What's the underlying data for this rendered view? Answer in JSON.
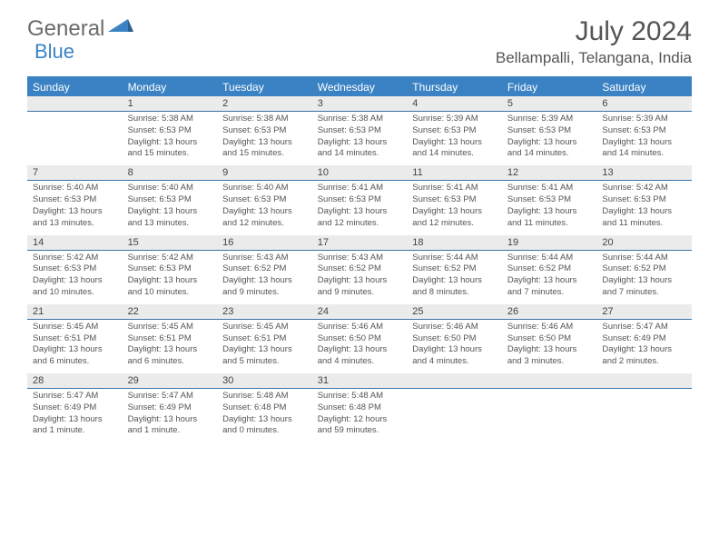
{
  "logo": {
    "text1": "General",
    "text2": "Blue"
  },
  "title": "July 2024",
  "location": "Bellampalli, Telangana, India",
  "colors": {
    "header_bg": "#3b82c4",
    "daynum_bg": "#ebebeb",
    "border": "#3b74a8",
    "text": "#555555",
    "logo_gray": "#6b6b6b",
    "logo_blue": "#3b82c4"
  },
  "day_names": [
    "Sunday",
    "Monday",
    "Tuesday",
    "Wednesday",
    "Thursday",
    "Friday",
    "Saturday"
  ],
  "weeks": [
    {
      "nums": [
        "",
        "1",
        "2",
        "3",
        "4",
        "5",
        "6"
      ],
      "cells": [
        null,
        {
          "sunrise": "5:38 AM",
          "sunset": "6:53 PM",
          "daylight": "13 hours and 15 minutes."
        },
        {
          "sunrise": "5:38 AM",
          "sunset": "6:53 PM",
          "daylight": "13 hours and 15 minutes."
        },
        {
          "sunrise": "5:38 AM",
          "sunset": "6:53 PM",
          "daylight": "13 hours and 14 minutes."
        },
        {
          "sunrise": "5:39 AM",
          "sunset": "6:53 PM",
          "daylight": "13 hours and 14 minutes."
        },
        {
          "sunrise": "5:39 AM",
          "sunset": "6:53 PM",
          "daylight": "13 hours and 14 minutes."
        },
        {
          "sunrise": "5:39 AM",
          "sunset": "6:53 PM",
          "daylight": "13 hours and 14 minutes."
        }
      ]
    },
    {
      "nums": [
        "7",
        "8",
        "9",
        "10",
        "11",
        "12",
        "13"
      ],
      "cells": [
        {
          "sunrise": "5:40 AM",
          "sunset": "6:53 PM",
          "daylight": "13 hours and 13 minutes."
        },
        {
          "sunrise": "5:40 AM",
          "sunset": "6:53 PM",
          "daylight": "13 hours and 13 minutes."
        },
        {
          "sunrise": "5:40 AM",
          "sunset": "6:53 PM",
          "daylight": "13 hours and 12 minutes."
        },
        {
          "sunrise": "5:41 AM",
          "sunset": "6:53 PM",
          "daylight": "13 hours and 12 minutes."
        },
        {
          "sunrise": "5:41 AM",
          "sunset": "6:53 PM",
          "daylight": "13 hours and 12 minutes."
        },
        {
          "sunrise": "5:41 AM",
          "sunset": "6:53 PM",
          "daylight": "13 hours and 11 minutes."
        },
        {
          "sunrise": "5:42 AM",
          "sunset": "6:53 PM",
          "daylight": "13 hours and 11 minutes."
        }
      ]
    },
    {
      "nums": [
        "14",
        "15",
        "16",
        "17",
        "18",
        "19",
        "20"
      ],
      "cells": [
        {
          "sunrise": "5:42 AM",
          "sunset": "6:53 PM",
          "daylight": "13 hours and 10 minutes."
        },
        {
          "sunrise": "5:42 AM",
          "sunset": "6:53 PM",
          "daylight": "13 hours and 10 minutes."
        },
        {
          "sunrise": "5:43 AM",
          "sunset": "6:52 PM",
          "daylight": "13 hours and 9 minutes."
        },
        {
          "sunrise": "5:43 AM",
          "sunset": "6:52 PM",
          "daylight": "13 hours and 9 minutes."
        },
        {
          "sunrise": "5:44 AM",
          "sunset": "6:52 PM",
          "daylight": "13 hours and 8 minutes."
        },
        {
          "sunrise": "5:44 AM",
          "sunset": "6:52 PM",
          "daylight": "13 hours and 7 minutes."
        },
        {
          "sunrise": "5:44 AM",
          "sunset": "6:52 PM",
          "daylight": "13 hours and 7 minutes."
        }
      ]
    },
    {
      "nums": [
        "21",
        "22",
        "23",
        "24",
        "25",
        "26",
        "27"
      ],
      "cells": [
        {
          "sunrise": "5:45 AM",
          "sunset": "6:51 PM",
          "daylight": "13 hours and 6 minutes."
        },
        {
          "sunrise": "5:45 AM",
          "sunset": "6:51 PM",
          "daylight": "13 hours and 6 minutes."
        },
        {
          "sunrise": "5:45 AM",
          "sunset": "6:51 PM",
          "daylight": "13 hours and 5 minutes."
        },
        {
          "sunrise": "5:46 AM",
          "sunset": "6:50 PM",
          "daylight": "13 hours and 4 minutes."
        },
        {
          "sunrise": "5:46 AM",
          "sunset": "6:50 PM",
          "daylight": "13 hours and 4 minutes."
        },
        {
          "sunrise": "5:46 AM",
          "sunset": "6:50 PM",
          "daylight": "13 hours and 3 minutes."
        },
        {
          "sunrise": "5:47 AM",
          "sunset": "6:49 PM",
          "daylight": "13 hours and 2 minutes."
        }
      ]
    },
    {
      "nums": [
        "28",
        "29",
        "30",
        "31",
        "",
        "",
        ""
      ],
      "cells": [
        {
          "sunrise": "5:47 AM",
          "sunset": "6:49 PM",
          "daylight": "13 hours and 1 minute."
        },
        {
          "sunrise": "5:47 AM",
          "sunset": "6:49 PM",
          "daylight": "13 hours and 1 minute."
        },
        {
          "sunrise": "5:48 AM",
          "sunset": "6:48 PM",
          "daylight": "13 hours and 0 minutes."
        },
        {
          "sunrise": "5:48 AM",
          "sunset": "6:48 PM",
          "daylight": "12 hours and 59 minutes."
        },
        null,
        null,
        null
      ]
    }
  ],
  "labels": {
    "sunrise_prefix": "Sunrise: ",
    "sunset_prefix": "Sunset: ",
    "daylight_prefix": "Daylight: "
  }
}
